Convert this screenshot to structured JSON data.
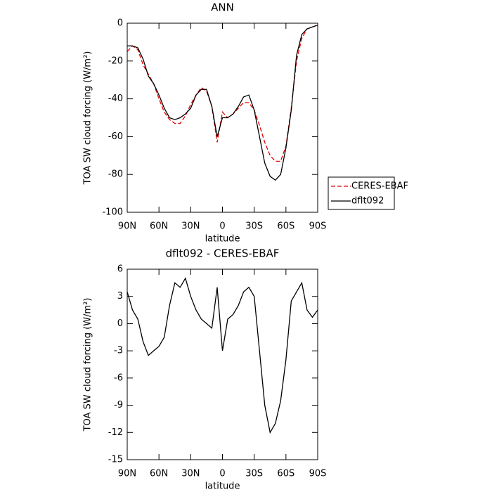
{
  "chart_data": [
    {
      "type": "line",
      "title": "ANN",
      "xlabel": "latitude",
      "ylabel": "TOA SW cloud forcing (W/m²)",
      "x": [
        90,
        85,
        80,
        75,
        70,
        65,
        60,
        55,
        50,
        45,
        40,
        35,
        30,
        25,
        20,
        15,
        10,
        5,
        0,
        -5,
        -10,
        -15,
        -20,
        -25,
        -30,
        -35,
        -40,
        -45,
        -50,
        -55,
        -60,
        -65,
        -70,
        -75,
        -80,
        -85,
        -90
      ],
      "series": [
        {
          "name": "CERES-EBAF",
          "color": "#e00000",
          "linestyle": "dashed",
          "values": [
            -15,
            -12,
            -14,
            -22,
            -27,
            -32,
            -40,
            -47,
            -51,
            -53,
            -53,
            -49,
            -43,
            -38,
            -34,
            -36,
            -44,
            -63,
            -47,
            -50,
            -48,
            -45,
            -42,
            -42,
            -46,
            -54,
            -63,
            -70,
            -73,
            -73,
            -65,
            -45,
            -20,
            -8,
            -3,
            -2,
            -1
          ]
        },
        {
          "name": "dflt092",
          "color": "#000000",
          "linestyle": "solid",
          "values": [
            -12,
            -12,
            -13,
            -19,
            -28,
            -32,
            -38,
            -45,
            -50,
            -51,
            -50,
            -48,
            -45,
            -38,
            -35,
            -35,
            -44,
            -60,
            -50,
            -50,
            -48,
            -44,
            -39,
            -38,
            -46,
            -60,
            -74,
            -81,
            -83,
            -80,
            -66,
            -46,
            -17,
            -6,
            -3,
            -2,
            -1
          ]
        }
      ],
      "xlim": [
        90,
        -90
      ],
      "xticks": [
        {
          "value": 90,
          "label": "90N"
        },
        {
          "value": 60,
          "label": "60N"
        },
        {
          "value": 30,
          "label": "30N"
        },
        0,
        {
          "value": -30,
          "label": "30S"
        },
        {
          "value": -60,
          "label": "60S"
        },
        {
          "value": -90,
          "label": "90S"
        }
      ],
      "ylim": [
        -100,
        0
      ],
      "yticks": [
        -100,
        -80,
        -60,
        -40,
        -20,
        0
      ],
      "legend": "right"
    },
    {
      "type": "line",
      "title": "dflt092 - CERES-EBAF",
      "xlabel": "latitude",
      "ylabel": "TOA SW cloud forcing (W/m²)",
      "x": [
        90,
        85,
        80,
        75,
        70,
        65,
        60,
        55,
        50,
        45,
        40,
        35,
        30,
        25,
        20,
        15,
        10,
        5,
        0,
        -5,
        -10,
        -15,
        -20,
        -25,
        -30,
        -35,
        -40,
        -45,
        -50,
        -55,
        -60,
        -65,
        -70,
        -75,
        -80,
        -85,
        -90
      ],
      "series": [
        {
          "color": "#000000",
          "linestyle": "solid",
          "values": [
            3.5,
            1.5,
            0.5,
            -2,
            -3.5,
            -3,
            -2.5,
            -1.5,
            2,
            4.5,
            4,
            5,
            3,
            1.5,
            0.5,
            0,
            -0.5,
            4,
            -3,
            0.5,
            1,
            2,
            3.5,
            4,
            3,
            -3,
            -9,
            -12,
            -11,
            -8.5,
            -4,
            2.5,
            3.5,
            4.5,
            1.5,
            0.7,
            1.5
          ]
        }
      ],
      "xlim": [
        90,
        -90
      ],
      "xticks": [
        {
          "value": 90,
          "label": "90N"
        },
        {
          "value": 60,
          "label": "60N"
        },
        {
          "value": 30,
          "label": "30N"
        },
        0,
        {
          "value": -30,
          "label": "30S"
        },
        {
          "value": -60,
          "label": "60S"
        },
        {
          "value": -90,
          "label": "90S"
        }
      ],
      "ylim": [
        -15,
        6
      ],
      "yticks": [
        -15,
        -12,
        -9,
        -6,
        -3,
        0,
        3,
        6
      ]
    }
  ]
}
